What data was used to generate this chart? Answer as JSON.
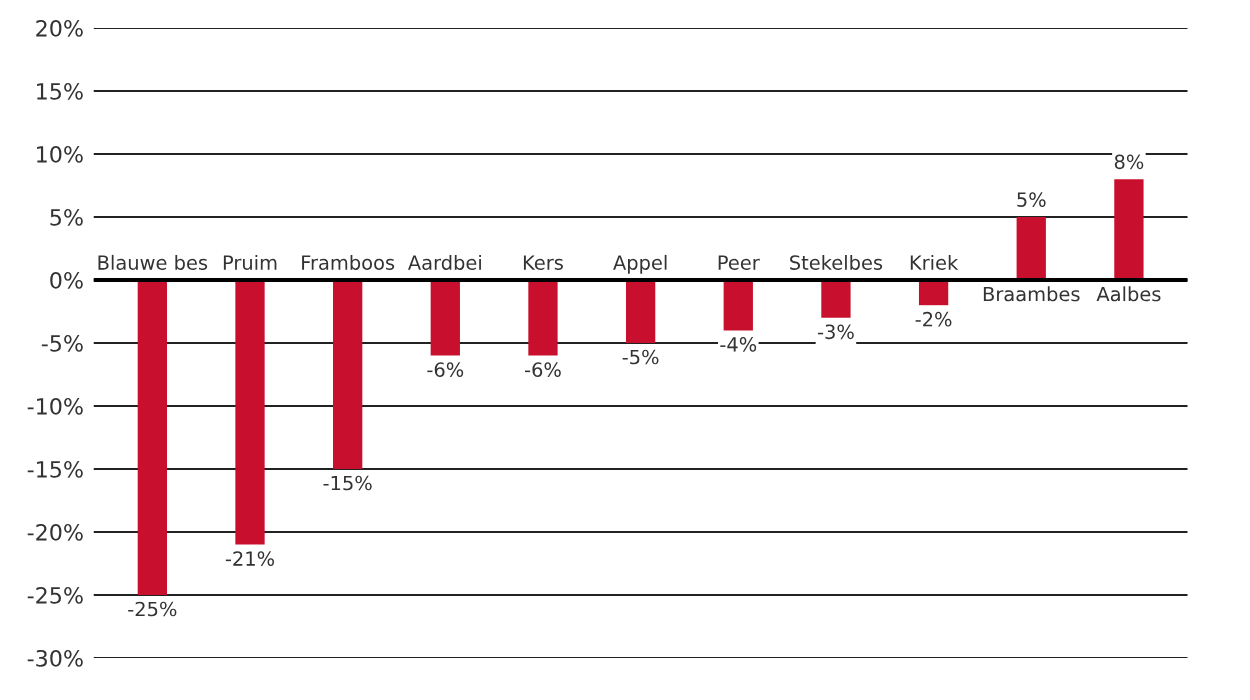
{
  "chart_data": {
    "type": "bar",
    "categories": [
      "Blauwe bes",
      "Pruim",
      "Framboos",
      "Aardbei",
      "Kers",
      "Appel",
      "Peer",
      "Stekelbes",
      "Kriek",
      "Braambes",
      "Aalbes"
    ],
    "values": [
      -25,
      -21,
      -15,
      -6,
      -6,
      -5,
      -4,
      -3,
      -2,
      5,
      8
    ],
    "value_labels": [
      "-25%",
      "-21%",
      "-15%",
      "-6%",
      "-6%",
      "-5%",
      "-4%",
      "-3%",
      "-2%",
      "5%",
      "8%"
    ],
    "color": "#c8102e",
    "ylim": [
      -30,
      20
    ],
    "yticks": [
      {
        "value": -30,
        "label": "-30%"
      },
      {
        "value": -25,
        "label": "-25%"
      },
      {
        "value": -20,
        "label": "-20%"
      },
      {
        "value": -15,
        "label": "-15%"
      },
      {
        "value": -10,
        "label": "-10%"
      },
      {
        "value": -5,
        "label": "-5%"
      },
      {
        "value": 0,
        "label": "0%"
      },
      {
        "value": 5,
        "label": "5%"
      },
      {
        "value": 10,
        "label": "10%"
      },
      {
        "value": 15,
        "label": "15%"
      },
      {
        "value": 20,
        "label": "20%"
      }
    ],
    "grid": "y"
  }
}
